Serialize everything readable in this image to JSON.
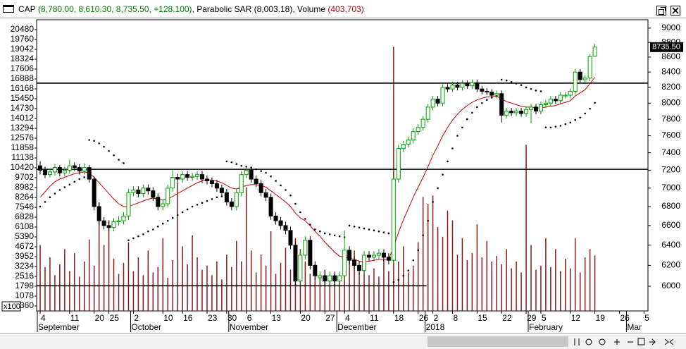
{
  "chart_data": {
    "type": "candlestick",
    "legend": [
      {
        "name": "CAP",
        "value_text": "(8,780.00, 8,610.30, 8,735.50, +128.100)",
        "color": "#008000"
      },
      {
        "name": "Parabolic SAR",
        "value_text": "(8,003.18)",
        "color": "#000000"
      },
      {
        "name": "Volume",
        "value_text": "(403,703)",
        "color": "#c00000"
      }
    ],
    "separator": ", ",
    "volume_unit": "x100",
    "close_label": "8735.50",
    "categories": [
      "4",
      null,
      null,
      null,
      null,
      null,
      "11",
      null,
      null,
      null,
      null,
      "20",
      null,
      null,
      "25",
      null,
      null,
      null,
      null,
      "2",
      null,
      null,
      null,
      null,
      null,
      "10",
      null,
      null,
      null,
      "16",
      null,
      null,
      null,
      null,
      "23",
      null,
      null,
      null,
      "30",
      null,
      null,
      null,
      "6",
      null,
      null,
      null,
      null,
      "13",
      null,
      null,
      null,
      null,
      null,
      "20",
      null,
      null,
      null,
      null,
      "27",
      null,
      null,
      null,
      "4",
      null,
      null,
      null,
      null,
      "11",
      null,
      null,
      null,
      null,
      "18",
      null,
      null,
      null,
      null,
      "26",
      null,
      null,
      "2",
      null,
      null,
      null,
      "8",
      null,
      null,
      null,
      null,
      "15",
      null,
      null,
      null,
      null,
      "22",
      null,
      null,
      null,
      null,
      "29",
      null,
      null,
      "5",
      null,
      null,
      null,
      null,
      null,
      "12",
      null,
      null,
      null,
      null,
      "19",
      null,
      null,
      null,
      null,
      "26",
      null,
      null,
      null,
      null,
      "5",
      null
    ],
    "months": [
      "September",
      null,
      null,
      null,
      null,
      null,
      null,
      null,
      null,
      null,
      null,
      null,
      null,
      null,
      null,
      null,
      null,
      null,
      null,
      "October",
      null,
      null,
      null,
      null,
      null,
      null,
      null,
      null,
      null,
      null,
      null,
      null,
      null,
      null,
      null,
      null,
      null,
      null,
      null,
      "November",
      null,
      null,
      null,
      null,
      null,
      null,
      null,
      null,
      null,
      null,
      null,
      null,
      null,
      null,
      null,
      null,
      null,
      null,
      null,
      null,
      null,
      "December",
      null,
      null,
      null,
      null,
      null,
      null,
      null,
      null,
      null,
      null,
      null,
      null,
      null,
      null,
      null,
      null,
      null,
      "2018",
      null,
      null,
      null,
      null,
      null,
      null,
      null,
      null,
      null,
      null,
      null,
      null,
      null,
      null,
      null,
      null,
      null,
      null,
      null,
      null,
      "February",
      null,
      null,
      null,
      null,
      null,
      null,
      null,
      null,
      null,
      null,
      null,
      null,
      null,
      null,
      null,
      null,
      null,
      null,
      null,
      "Mar",
      null,
      null,
      null,
      null
    ],
    "ohlc": [
      [
        7250,
        7300,
        7150,
        7200
      ],
      [
        7200,
        7240,
        7110,
        7150
      ],
      [
        7150,
        7220,
        7120,
        7180
      ],
      [
        7180,
        7270,
        7140,
        7230
      ],
      [
        7230,
        7260,
        7130,
        7170
      ],
      [
        7170,
        7240,
        7130,
        7200
      ],
      [
        7200,
        7320,
        7160,
        7250
      ],
      [
        7250,
        7290,
        7190,
        7230
      ],
      [
        7230,
        7270,
        7150,
        7190
      ],
      [
        7190,
        7280,
        7150,
        7230
      ],
      [
        7230,
        7260,
        7060,
        7100
      ],
      [
        7100,
        7130,
        6760,
        6800
      ],
      [
        6800,
        6840,
        6610,
        6650
      ],
      [
        6650,
        6690,
        6560,
        6600
      ],
      [
        6600,
        6640,
        6540,
        6580
      ],
      [
        6580,
        6680,
        6540,
        6640
      ],
      [
        6640,
        6700,
        6600,
        6650
      ],
      [
        6650,
        6740,
        6610,
        6700
      ],
      [
        6700,
        6990,
        6660,
        6950
      ],
      [
        6950,
        7020,
        6910,
        6980
      ],
      [
        6980,
        7020,
        6900,
        6940
      ],
      [
        6940,
        7040,
        6900,
        7000
      ],
      [
        7000,
        7040,
        6930,
        6970
      ],
      [
        6970,
        7010,
        6860,
        6900
      ],
      [
        6900,
        6940,
        6760,
        6800
      ],
      [
        6800,
        6870,
        6760,
        6830
      ],
      [
        6830,
        7040,
        6790,
        7000
      ],
      [
        7000,
        7200,
        6960,
        7120
      ],
      [
        7120,
        7160,
        7060,
        7100
      ],
      [
        7100,
        7190,
        7060,
        7150
      ],
      [
        7150,
        7190,
        7080,
        7120
      ],
      [
        7120,
        7170,
        7080,
        7130
      ],
      [
        7130,
        7190,
        7090,
        7150
      ],
      [
        7150,
        7190,
        7060,
        7100
      ],
      [
        7100,
        7140,
        7040,
        7080
      ],
      [
        7080,
        7120,
        7010,
        7050
      ],
      [
        7050,
        7090,
        6960,
        7000
      ],
      [
        7000,
        7040,
        6910,
        6950
      ],
      [
        6950,
        6990,
        6810,
        6850
      ],
      [
        6850,
        6890,
        6760,
        6800
      ],
      [
        6800,
        6990,
        6760,
        6950
      ],
      [
        6950,
        7190,
        6910,
        7150
      ],
      [
        7150,
        7240,
        7110,
        7200
      ],
      [
        7200,
        7240,
        7060,
        7100
      ],
      [
        7100,
        7140,
        7010,
        7050
      ],
      [
        7050,
        7090,
        6910,
        6950
      ],
      [
        6950,
        6990,
        6860,
        6900
      ],
      [
        6900,
        6940,
        6660,
        6700
      ],
      [
        6700,
        6740,
        6610,
        6650
      ],
      [
        6650,
        6690,
        6560,
        6600
      ],
      [
        6600,
        6640,
        6510,
        6550
      ],
      [
        6550,
        6590,
        6360,
        6400
      ],
      [
        6400,
        6440,
        6010,
        6050
      ],
      [
        6050,
        6340,
        6010,
        6300
      ],
      [
        6300,
        6490,
        6260,
        6450
      ],
      [
        6450,
        6490,
        6160,
        6200
      ],
      [
        6200,
        6240,
        6060,
        6100
      ],
      [
        6080,
        6140,
        6040,
        6100
      ],
      [
        6100,
        6140,
        6010,
        6050
      ],
      [
        6050,
        6140,
        6010,
        6100
      ],
      [
        6100,
        6140,
        6010,
        6050
      ],
      [
        6050,
        6140,
        6010,
        6100
      ],
      [
        6100,
        6550,
        6060,
        6350
      ],
      [
        6350,
        6390,
        6210,
        6250
      ],
      [
        6250,
        6290,
        6160,
        6200
      ],
      [
        6200,
        6240,
        6110,
        6150
      ],
      [
        6150,
        6340,
        6110,
        6300
      ],
      [
        6300,
        6340,
        6240,
        6280
      ],
      [
        6280,
        6340,
        6240,
        6300
      ],
      [
        6300,
        6360,
        6260,
        6320
      ],
      [
        6320,
        6360,
        6240,
        6280
      ],
      [
        6280,
        6320,
        6210,
        6250
      ],
      [
        6250,
        7140,
        6210,
        7100
      ],
      [
        7100,
        7490,
        7060,
        7450
      ],
      [
        7450,
        7540,
        7410,
        7500
      ],
      [
        7500,
        7590,
        7460,
        7550
      ],
      [
        7550,
        7690,
        7510,
        7650
      ],
      [
        7650,
        7740,
        7610,
        7700
      ],
      [
        7700,
        7840,
        7660,
        7800
      ],
      [
        7800,
        7990,
        7760,
        7950
      ],
      [
        7950,
        8090,
        7910,
        8050
      ],
      [
        8050,
        8090,
        7960,
        8000
      ],
      [
        8000,
        8240,
        7960,
        8200
      ],
      [
        8200,
        8240,
        8140,
        8180
      ],
      [
        8180,
        8270,
        8140,
        8230
      ],
      [
        8230,
        8270,
        8160,
        8200
      ],
      [
        8200,
        8290,
        8160,
        8250
      ],
      [
        8250,
        8290,
        8180,
        8220
      ],
      [
        8220,
        8300,
        8180,
        8260
      ],
      [
        8260,
        8300,
        8140,
        8180
      ],
      [
        8180,
        8220,
        8110,
        8150
      ],
      [
        8150,
        8190,
        8100,
        8140
      ],
      [
        8140,
        8180,
        8060,
        8100
      ],
      [
        8100,
        8160,
        8060,
        8120
      ],
      [
        8120,
        8160,
        7760,
        7850
      ],
      [
        7850,
        7940,
        7810,
        7900
      ],
      [
        7900,
        7940,
        7840,
        7880
      ],
      [
        7880,
        7940,
        7840,
        7900
      ],
      [
        7900,
        7940,
        7830,
        7870
      ],
      [
        7870,
        7960,
        7830,
        7920
      ],
      [
        7920,
        7990,
        7750,
        7950
      ],
      [
        7950,
        7990,
        7860,
        7900
      ],
      [
        7900,
        8020,
        7860,
        7980
      ],
      [
        7980,
        8040,
        7940,
        8000
      ],
      [
        8000,
        8090,
        7960,
        8050
      ],
      [
        8050,
        8090,
        7990,
        8030
      ],
      [
        8030,
        8140,
        7990,
        8100
      ],
      [
        8090,
        8140,
        8060,
        8100
      ],
      [
        8100,
        8190,
        8060,
        8150
      ],
      [
        8150,
        8440,
        8110,
        8400
      ],
      [
        8400,
        8440,
        8260,
        8300
      ],
      [
        8300,
        8360,
        8260,
        8320
      ],
      [
        8320,
        8640,
        8280,
        8607.4
      ],
      [
        8610.3,
        8780,
        8610.3,
        8735.5
      ],
      null,
      null,
      null,
      null,
      null,
      null,
      null,
      null,
      null,
      null,
      null
    ],
    "volume": [
      4800,
      3200,
      3900,
      2600,
      3400,
      4500,
      2900,
      4200,
      2500,
      3600,
      5200,
      3300,
      7900,
      4800,
      6600,
      3800,
      2700,
      3500,
      5000,
      2900,
      3900,
      2600,
      4400,
      2800,
      3200,
      5300,
      2400,
      3700,
      9300,
      4700,
      3400,
      5500,
      3900,
      3000,
      3300,
      2600,
      3600,
      2300,
      4100,
      3200,
      5100,
      3600,
      9000,
      4400,
      2800,
      4100,
      3300,
      5800,
      2700,
      3500,
      4600,
      3000,
      5300,
      4500,
      3600,
      2700,
      3400,
      2400,
      3000,
      2300,
      2700,
      2200,
      2600,
      3900,
      4400,
      2800,
      3500,
      2600,
      3100,
      2500,
      3700,
      2900,
      19230,
      3600,
      4700,
      2800,
      3300,
      5000,
      8300,
      7800,
      8400,
      6100,
      5400,
      7300,
      6600,
      4100,
      5300,
      3700,
      4200,
      6300,
      3900,
      5100,
      3600,
      4000,
      3400,
      4500,
      3100,
      3600,
      2800,
      12100,
      4800,
      3000,
      3300,
      5300,
      3200,
      4500,
      2900,
      3800,
      3100,
      5300,
      2800,
      3900,
      4500,
      4037.03,
      null,
      null,
      null,
      null,
      null,
      null,
      null,
      null,
      null,
      null,
      null
    ],
    "sar": [
      6800,
      6850,
      6900,
      6940,
      6980,
      7010,
      7040,
      7070,
      7100,
      7120,
      7550,
      7540,
      7510,
      7470,
      7420,
      7370,
      7320,
      7280,
      6450,
      6470,
      6490,
      6510,
      6540,
      6560,
      6590,
      6620,
      6650,
      6680,
      6710,
      6740,
      6770,
      6800,
      6820,
      6840,
      6860,
      6880,
      6900,
      6910,
      7300,
      7290,
      7270,
      7250,
      7240,
      7230,
      7210,
      7190,
      7170,
      7130,
      7080,
      7030,
      6980,
      6920,
      6830,
      6740,
      6670,
      6610,
      6560,
      6540,
      6520,
      6510,
      6500,
      6490,
      6480,
      6600,
      6590,
      6580,
      6570,
      6560,
      6550,
      6540,
      6530,
      6520,
      6040,
      6060,
      6100,
      6150,
      6250,
      6350,
      6500,
      6650,
      6850,
      7000,
      7150,
      7300,
      7450,
      7600,
      7700,
      7800,
      7880,
      7950,
      8000,
      8040,
      8070,
      8090,
      8300,
      8290,
      8270,
      8250,
      8230,
      8200,
      8180,
      8160,
      8150,
      7700,
      7700,
      7710,
      7720,
      7740,
      7760,
      7790,
      7820,
      7870,
      7930,
      8003.18,
      null,
      null,
      null,
      null,
      null,
      null,
      null,
      null,
      null,
      null,
      null
    ],
    "ma": [
      6900,
      6960,
      7020,
      7070,
      7100,
      7120,
      7140,
      7160,
      7170,
      7180,
      7170,
      7120,
      7060,
      7000,
      6940,
      6880,
      6830,
      6800,
      6800,
      6820,
      6840,
      6860,
      6880,
      6890,
      6880,
      6870,
      6880,
      6910,
      6940,
      6970,
      7000,
      7030,
      7060,
      7080,
      7090,
      7090,
      7080,
      7060,
      7030,
      7000,
      6990,
      7010,
      7030,
      7040,
      7040,
      7030,
      7010,
      6970,
      6930,
      6890,
      6850,
      6800,
      6730,
      6680,
      6650,
      6600,
      6540,
      6490,
      6430,
      6380,
      6330,
      6290,
      6280,
      6270,
      6260,
      6240,
      6240,
      6240,
      6250,
      6260,
      6260,
      6260,
      6380,
      6530,
      6660,
      6780,
      6900,
      7010,
      7120,
      7240,
      7370,
      7480,
      7600,
      7700,
      7790,
      7860,
      7920,
      7970,
      8010,
      8040,
      8060,
      8080,
      8080,
      8090,
      8050,
      8020,
      8000,
      7980,
      7960,
      7950,
      7950,
      7940,
      7940,
      7950,
      7960,
      7970,
      7990,
      8010,
      8030,
      8090,
      8130,
      8170,
      8250,
      8330,
      null,
      null,
      null,
      null,
      null,
      null,
      null,
      null,
      null,
      null,
      null
    ],
    "hlines": [
      8255,
      7210,
      6005
    ],
    "up_color": "#00a000",
    "down_color": "#000000",
    "volume_color": "#8b1a1a",
    "ma_color": "#d00000",
    "sar_color": "#000000",
    "log_scale": true,
    "ylim": [
      5772,
      9099
    ],
    "yticks": [
      6000,
      6200,
      6400,
      6600,
      6800,
      7000,
      7200,
      7400,
      7600,
      7800,
      8000,
      8200,
      8400,
      8600,
      8800,
      9000
    ],
    "vlim": [
      0,
      21096
    ],
    "vticks": [
      20480,
      19760,
      19042,
      18324,
      17606,
      16888,
      16168,
      15450,
      14730,
      14012,
      13294,
      12576,
      11858,
      11138,
      10420,
      9702,
      8982,
      8264,
      7546,
      6828,
      6108,
      5390,
      4672,
      3952,
      3234,
      2516,
      1798,
      1078,
      360
    ]
  }
}
